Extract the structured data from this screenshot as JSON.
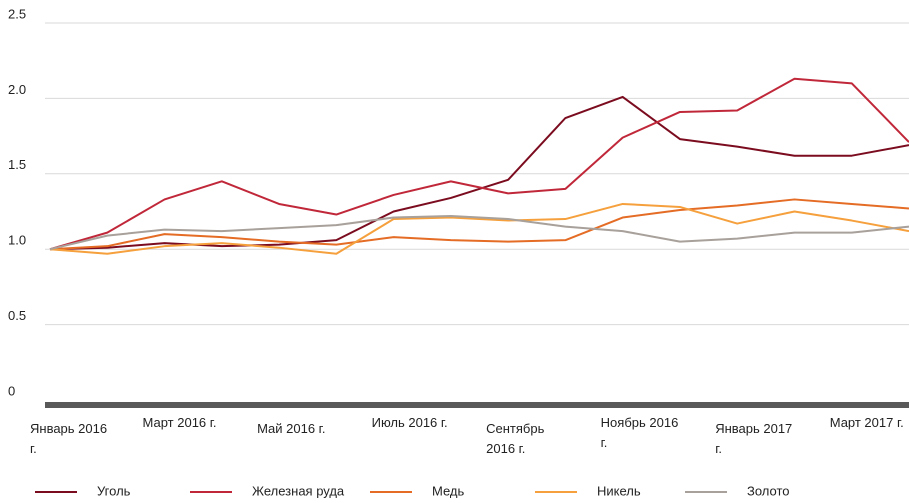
{
  "chart_data": {
    "type": "line",
    "categories": [
      "Январь 2016 г.",
      null,
      "Март 2016 г.",
      null,
      "Май 2016 г.",
      null,
      "Июль 2016 г.",
      null,
      "Сентябрь 2016 г.",
      null,
      "Ноябрь 2016 г.",
      null,
      "Январь 2017 г.",
      null,
      "Март 2017 г.",
      null
    ],
    "series": [
      {
        "name": "Уголь",
        "color": "#7b0c1f",
        "values": [
          1.0,
          1.01,
          1.04,
          1.02,
          1.03,
          1.06,
          1.25,
          1.34,
          1.46,
          1.87,
          2.01,
          1.73,
          1.68,
          1.62,
          1.62,
          1.69
        ]
      },
      {
        "name": "Железная руда",
        "color": "#c0283a",
        "values": [
          1.0,
          1.11,
          1.33,
          1.45,
          1.3,
          1.23,
          1.36,
          1.45,
          1.37,
          1.4,
          1.74,
          1.91,
          1.92,
          2.13,
          2.1,
          1.71
        ]
      },
      {
        "name": "Медь",
        "color": "#e46c25",
        "values": [
          1.0,
          1.02,
          1.1,
          1.08,
          1.05,
          1.03,
          1.08,
          1.06,
          1.05,
          1.06,
          1.21,
          1.26,
          1.29,
          1.33,
          1.3,
          1.27
        ]
      },
      {
        "name": "Никель",
        "color": "#f5a03c",
        "values": [
          1.0,
          0.97,
          1.02,
          1.04,
          1.01,
          0.97,
          1.2,
          1.21,
          1.19,
          1.2,
          1.3,
          1.28,
          1.17,
          1.25,
          1.19,
          1.12
        ]
      },
      {
        "name": "Золото",
        "color": "#a8a09a",
        "values": [
          1.0,
          1.09,
          1.13,
          1.12,
          1.14,
          1.16,
          1.21,
          1.22,
          1.2,
          1.15,
          1.12,
          1.05,
          1.07,
          1.11,
          1.11,
          1.15
        ]
      }
    ],
    "ylim": [
      0,
      2.5
    ],
    "yticks": [
      0,
      0.5,
      {
        "value": 1,
        "label": "1.0"
      },
      1.5,
      {
        "value": 2,
        "label": "2.0"
      },
      2.5
    ],
    "grid": true,
    "legend": "bottom"
  }
}
